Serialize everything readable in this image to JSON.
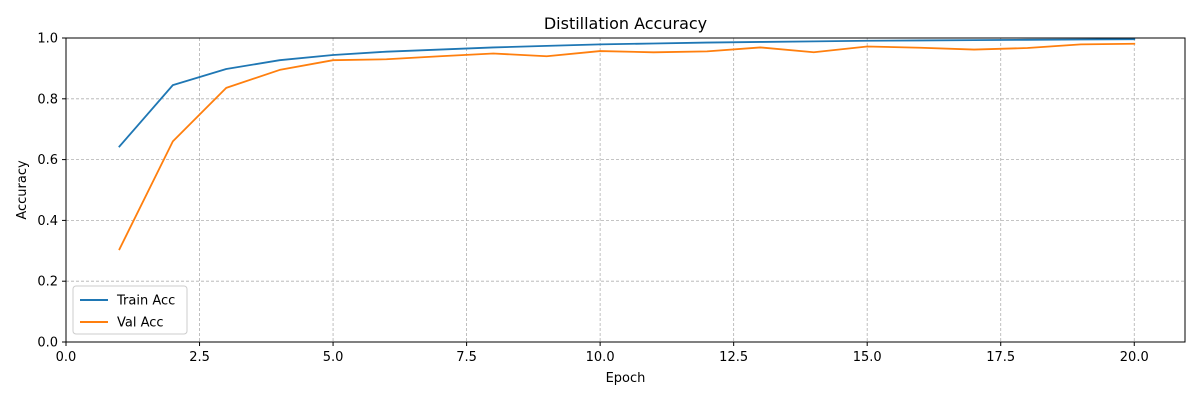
{
  "chart_data": {
    "type": "line",
    "title": "Distillation Accuracy",
    "xlabel": "Epoch",
    "ylabel": "Accuracy",
    "xlim": [
      0,
      20.95
    ],
    "ylim": [
      0,
      1.0
    ],
    "xticks": [
      0,
      2.5,
      5,
      7.5,
      10,
      12.5,
      15,
      17.5,
      20
    ],
    "xtick_labels": [
      "0.0",
      "2.5",
      "5.0",
      "7.5",
      "10.0",
      "12.5",
      "15.0",
      "17.5",
      "20.0"
    ],
    "yticks": [
      0,
      0.2,
      0.4,
      0.6,
      0.8,
      1.0
    ],
    "ytick_labels": [
      "0.0",
      "0.2",
      "0.4",
      "0.6",
      "0.8",
      "1.0"
    ],
    "grid": true,
    "legend_position": "lower-left",
    "x": [
      1,
      2,
      3,
      4,
      5,
      6,
      7,
      8,
      9,
      10,
      11,
      12,
      13,
      14,
      15,
      16,
      17,
      18,
      19,
      20
    ],
    "series": [
      {
        "name": "Train Acc",
        "color": "#1f77b4",
        "values": [
          0.643,
          0.845,
          0.898,
          0.927,
          0.944,
          0.955,
          0.962,
          0.969,
          0.974,
          0.979,
          0.982,
          0.985,
          0.987,
          0.989,
          0.991,
          0.992,
          0.993,
          0.994,
          0.995,
          0.996
        ]
      },
      {
        "name": "Val Acc",
        "color": "#ff7f0e",
        "values": [
          0.305,
          0.66,
          0.836,
          0.895,
          0.927,
          0.93,
          0.94,
          0.949,
          0.94,
          0.957,
          0.953,
          0.956,
          0.969,
          0.953,
          0.972,
          0.968,
          0.962,
          0.967,
          0.979,
          0.981
        ]
      }
    ]
  }
}
